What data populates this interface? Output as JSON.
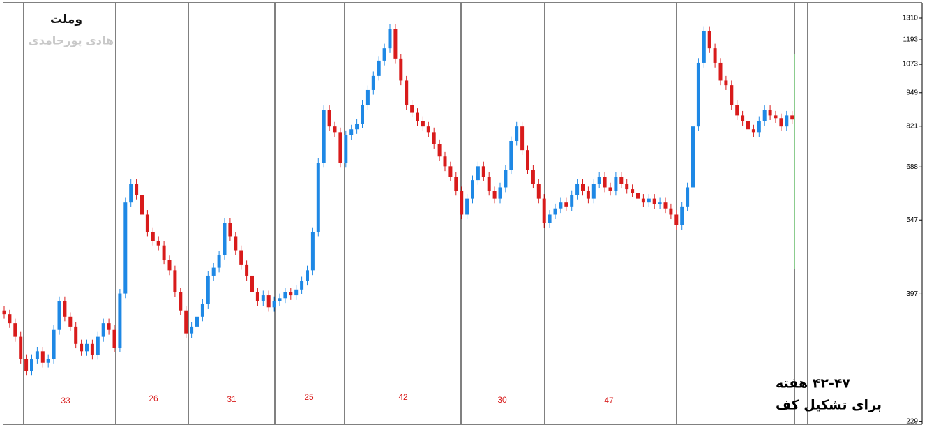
{
  "chart_data": {
    "type": "candlestick",
    "title": "وملت",
    "subtitle": "هادی پورحامدی",
    "annotations": [
      "۴۲-۴۷ هفته",
      "برای تشکیل کف"
    ],
    "period_counts": [
      33,
      26,
      31,
      25,
      42,
      30,
      47
    ],
    "log_scale": true,
    "ylim": [
      226,
      1400
    ],
    "yticks": [
      1310,
      1193,
      1073,
      949,
      821,
      688,
      547,
      397,
      229
    ],
    "up_color": "#1e88e5",
    "down_color": "#d81b1b",
    "series": [
      {
        "open": [
          370,
          364,
          350,
          330,
          300,
          285,
          300,
          310,
          295,
          300,
          340,
          385,
          360,
          345,
          320,
          310,
          320,
          305,
          330,
          350,
          340,
          315,
          398,
          590,
          640,
          610,
          560,
          520,
          500,
          490,
          460,
          440,
          400,
          370,
          335,
          345,
          360,
          380,
          430,
          445,
          470,
          540,
          510,
          480,
          450,
          430,
          400,
          385,
          395,
          375,
          385,
          390,
          400,
          395,
          405,
          420,
          440,
          520,
          700,
          880,
          820,
          800,
          700,
          790,
          810,
          830,
          900,
          960,
          1020,
          1090,
          1150,
          1250,
          1100,
          1000,
          900,
          870,
          840,
          820,
          800,
          760,
          720,
          690,
          660,
          620,
          560,
          600,
          650,
          690,
          660,
          620,
          600,
          630,
          680,
          770,
          820,
          740,
          680,
          640,
          600,
          540,
          560,
          575,
          590,
          580,
          610,
          640,
          620,
          600,
          640,
          660,
          630,
          620,
          660,
          640,
          625,
          615,
          600,
          590,
          600,
          585,
          590,
          575,
          560,
          535,
          580,
          630,
          820,
          1080,
          1240,
          1150,
          1080,
          1000,
          980,
          900,
          860,
          840,
          810,
          800,
          840,
          880,
          860,
          850,
          820,
          860
        ],
        "high": [
          377,
          371,
          357,
          337,
          306,
          306,
          316,
          316,
          306,
          347,
          393,
          393,
          367,
          352,
          326,
          326,
          326,
          337,
          357,
          357,
          347,
          406,
          602,
          653,
          653,
          622,
          571,
          530,
          510,
          500,
          469,
          449,
          408,
          377,
          352,
          367,
          388,
          439,
          454,
          479,
          551,
          551,
          520,
          490,
          459,
          439,
          408,
          403,
          403,
          393,
          398,
          408,
          408,
          413,
          428,
          449,
          530,
          714,
          898,
          898,
          836,
          816,
          806,
          826,
          847,
          918,
          979,
          1040,
          1112,
          1173,
          1275,
          1275,
          1122,
          1020,
          918,
          887,
          857,
          836,
          816,
          775,
          734,
          704,
          673,
          632,
          612,
          663,
          704,
          704,
          673,
          632,
          643,
          694,
          785,
          836,
          836,
          755,
          694,
          653,
          612,
          571,
          587,
          602,
          602,
          622,
          653,
          653,
          632,
          653,
          673,
          673,
          643,
          673,
          673,
          653,
          638,
          627,
          612,
          612,
          612,
          602,
          602,
          587,
          571,
          592,
          643,
          836,
          1102,
          1265,
          1265,
          1173,
          1102,
          1020,
          1000,
          918,
          877,
          857,
          826,
          857,
          898,
          898,
          877,
          867,
          877,
          877
        ],
        "low": [
          357,
          343,
          323,
          294,
          279,
          279,
          294,
          289,
          289,
          294,
          333,
          353,
          338,
          314,
          304,
          304,
          299,
          299,
          323,
          333,
          309,
          309,
          390,
          578,
          598,
          549,
          510,
          490,
          480,
          451,
          431,
          392,
          363,
          328,
          328,
          338,
          353,
          372,
          421,
          436,
          461,
          500,
          470,
          441,
          421,
          392,
          377,
          377,
          368,
          368,
          377,
          382,
          387,
          387,
          397,
          412,
          431,
          510,
          686,
          804,
          784,
          686,
          686,
          774,
          794,
          813,
          882,
          941,
          1000,
          1068,
          1127,
          1078,
          980,
          882,
          853,
          823,
          804,
          784,
          745,
          706,
          676,
          647,
          608,
          549,
          549,
          588,
          637,
          647,
          608,
          588,
          588,
          617,
          666,
          755,
          725,
          666,
          627,
          588,
          529,
          529,
          549,
          564,
          568,
          568,
          598,
          608,
          588,
          588,
          627,
          617,
          608,
          608,
          627,
          613,
          603,
          588,
          578,
          578,
          573,
          573,
          564,
          549,
          524,
          524,
          568,
          617,
          804,
          1058,
          1127,
          1058,
          980,
          960,
          882,
          843,
          823,
          794,
          784,
          784,
          823,
          843,
          833,
          804,
          804,
          828
        ],
        "close": [
          364,
          350,
          330,
          300,
          285,
          300,
          310,
          295,
          300,
          340,
          385,
          360,
          345,
          320,
          310,
          320,
          305,
          330,
          350,
          340,
          315,
          398,
          590,
          640,
          610,
          560,
          520,
          500,
          490,
          460,
          440,
          400,
          370,
          335,
          345,
          360,
          380,
          430,
          445,
          470,
          540,
          510,
          480,
          450,
          430,
          400,
          385,
          395,
          375,
          385,
          390,
          400,
          395,
          405,
          420,
          440,
          520,
          700,
          880,
          820,
          800,
          700,
          790,
          810,
          830,
          900,
          960,
          1020,
          1090,
          1150,
          1250,
          1100,
          1000,
          900,
          870,
          840,
          820,
          800,
          760,
          720,
          690,
          660,
          620,
          560,
          600,
          650,
          690,
          660,
          620,
          600,
          630,
          680,
          770,
          820,
          740,
          680,
          640,
          600,
          540,
          560,
          575,
          590,
          580,
          610,
          640,
          620,
          600,
          640,
          660,
          630,
          620,
          660,
          640,
          625,
          615,
          600,
          590,
          600,
          585,
          590,
          575,
          560,
          535,
          580,
          630,
          820,
          1080,
          1240,
          1150,
          1080,
          1000,
          980,
          900,
          860,
          840,
          810,
          800,
          840,
          880,
          860,
          850,
          820,
          860,
          845
        ]
      }
    ]
  }
}
